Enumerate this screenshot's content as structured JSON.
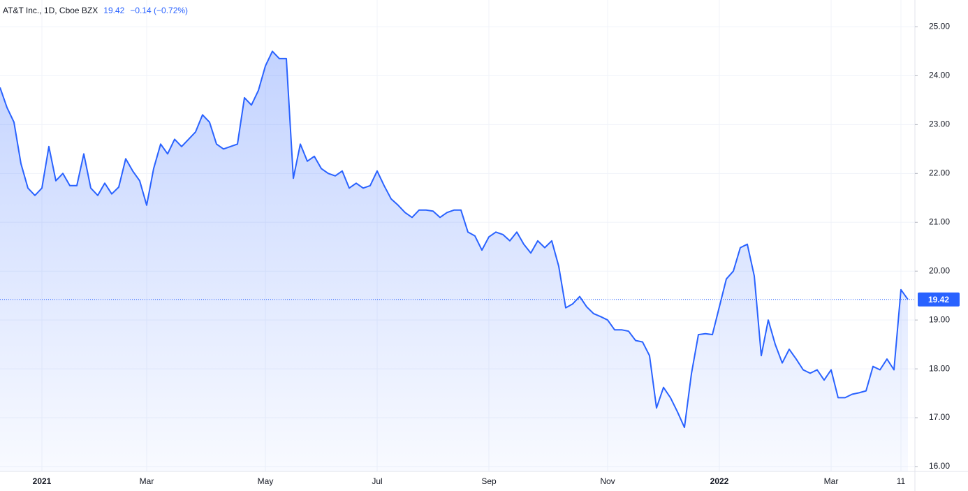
{
  "chart_data": {
    "type": "area",
    "title": "AT&T Inc., 1D, Cboe BZX",
    "last_price": 19.42,
    "change": "−0.14 (−0.72%)",
    "color": "#2962ff",
    "grid": true,
    "categories": [
      null,
      null,
      null,
      null,
      null,
      null,
      "2021",
      null,
      null,
      null,
      null,
      null,
      null,
      null,
      null,
      null,
      null,
      null,
      null,
      null,
      null,
      "Mar",
      null,
      null,
      null,
      null,
      null,
      null,
      null,
      null,
      null,
      null,
      null,
      null,
      null,
      null,
      null,
      null,
      "May",
      null,
      null,
      null,
      null,
      null,
      null,
      null,
      null,
      null,
      null,
      null,
      null,
      null,
      null,
      null,
      "Jul",
      null,
      null,
      null,
      null,
      null,
      null,
      null,
      null,
      null,
      null,
      null,
      null,
      null,
      null,
      null,
      "Sep",
      null,
      null,
      null,
      null,
      null,
      null,
      null,
      null,
      null,
      null,
      null,
      null,
      null,
      null,
      null,
      null,
      "Nov",
      null,
      null,
      null,
      null,
      null,
      null,
      null,
      null,
      null,
      null,
      null,
      null,
      null,
      null,
      null,
      "2022",
      null,
      null,
      null,
      null,
      null,
      null,
      null,
      null,
      null,
      null,
      null,
      null,
      null,
      null,
      null,
      "Mar",
      null,
      null,
      null,
      null,
      null,
      null,
      null,
      null,
      null,
      "11",
      null
    ],
    "values": [
      23.76,
      23.35,
      23.05,
      22.2,
      21.7,
      21.55,
      21.7,
      22.55,
      21.85,
      22.0,
      21.75,
      21.75,
      22.4,
      21.7,
      21.55,
      21.8,
      21.58,
      21.72,
      22.3,
      22.05,
      21.85,
      21.35,
      22.1,
      22.6,
      22.4,
      22.7,
      22.55,
      22.7,
      22.85,
      23.2,
      23.05,
      22.6,
      22.5,
      22.55,
      22.6,
      23.55,
      23.4,
      23.7,
      24.2,
      24.5,
      24.35,
      24.35,
      21.9,
      22.6,
      22.25,
      22.35,
      22.1,
      22.0,
      21.95,
      22.05,
      21.7,
      21.8,
      21.7,
      21.75,
      22.05,
      21.75,
      21.48,
      21.35,
      21.2,
      21.1,
      21.25,
      21.25,
      21.23,
      21.1,
      21.2,
      21.25,
      21.25,
      20.8,
      20.72,
      20.43,
      20.7,
      20.8,
      20.75,
      20.62,
      20.8,
      20.55,
      20.37,
      20.62,
      20.48,
      20.62,
      20.1,
      19.25,
      19.33,
      19.48,
      19.27,
      19.13,
      19.07,
      19.0,
      18.8,
      18.8,
      18.77,
      18.58,
      18.55,
      18.27,
      17.2,
      17.62,
      17.41,
      17.12,
      16.8,
      17.9,
      18.7,
      18.72,
      18.7,
      19.27,
      19.84,
      20.0,
      20.48,
      20.55,
      19.9,
      18.27,
      19.0,
      18.5,
      18.12,
      18.4,
      18.2,
      17.98,
      17.91,
      17.98,
      17.77,
      17.98,
      17.41,
      17.41,
      17.48,
      17.51,
      17.55,
      18.05,
      17.98,
      18.2,
      17.98,
      19.62,
      19.42
    ],
    "ylim": [
      15.9,
      25.55
    ],
    "yticks": [
      {
        "value": 16,
        "label": "16.00"
      },
      {
        "value": 17,
        "label": "17.00"
      },
      {
        "value": 18,
        "label": "18.00"
      },
      {
        "value": 19,
        "label": "19.00"
      },
      {
        "value": 20,
        "label": "20.00"
      },
      {
        "value": 21,
        "label": "21.00"
      },
      {
        "value": 22,
        "label": "22.00"
      },
      {
        "value": 23,
        "label": "23.00"
      },
      {
        "value": 24,
        "label": "24.00"
      },
      {
        "value": 25,
        "label": "25.00"
      }
    ]
  }
}
